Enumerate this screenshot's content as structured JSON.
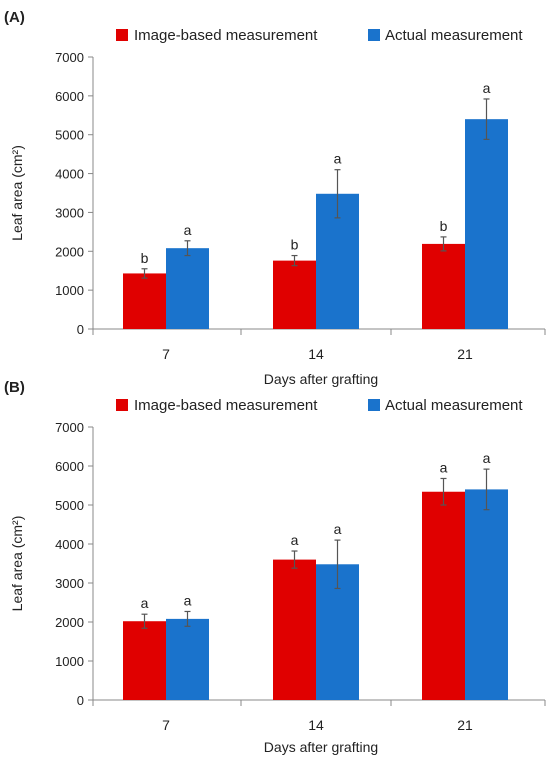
{
  "chart_data": [
    {
      "type": "bar",
      "panel_label": "(A)",
      "categories": [
        "7",
        "14",
        "21"
      ],
      "series": [
        {
          "name": "Image-based measurement",
          "color": "#e00000",
          "values": [
            1430,
            1760,
            2190
          ],
          "errors": [
            120,
            130,
            180
          ],
          "letters": [
            "b",
            "b",
            "b"
          ]
        },
        {
          "name": "Actual measurement",
          "color": "#1a73cc",
          "values": [
            2080,
            3480,
            5400
          ],
          "errors": [
            190,
            620,
            520
          ],
          "letters": [
            "a",
            "a",
            "a"
          ]
        }
      ],
      "xlabel": "Days after grafting",
      "ylabel": "Leaf area (cm²)",
      "ylim": [
        0,
        7000
      ],
      "yticks": [
        "0",
        "1000",
        "2000",
        "3000",
        "4000",
        "5000",
        "6000",
        "7000"
      ],
      "legend_position": "top",
      "grid": false
    },
    {
      "type": "bar",
      "panel_label": "(B)",
      "categories": [
        "7",
        "14",
        "21"
      ],
      "series": [
        {
          "name": "Image-based measurement",
          "color": "#e00000",
          "values": [
            2020,
            3600,
            5340
          ],
          "errors": [
            180,
            220,
            340
          ],
          "letters": [
            "a",
            "a",
            "a"
          ]
        },
        {
          "name": "Actual measurement",
          "color": "#1a73cc",
          "values": [
            2080,
            3480,
            5400
          ],
          "errors": [
            190,
            620,
            520
          ],
          "letters": [
            "a",
            "a",
            "a"
          ]
        }
      ],
      "xlabel": "Days after grafting",
      "ylabel": "Leaf area (cm²)",
      "ylim": [
        0,
        7000
      ],
      "yticks": [
        "0",
        "1000",
        "2000",
        "3000",
        "4000",
        "5000",
        "6000",
        "7000"
      ],
      "legend_position": "top",
      "grid": false
    }
  ]
}
